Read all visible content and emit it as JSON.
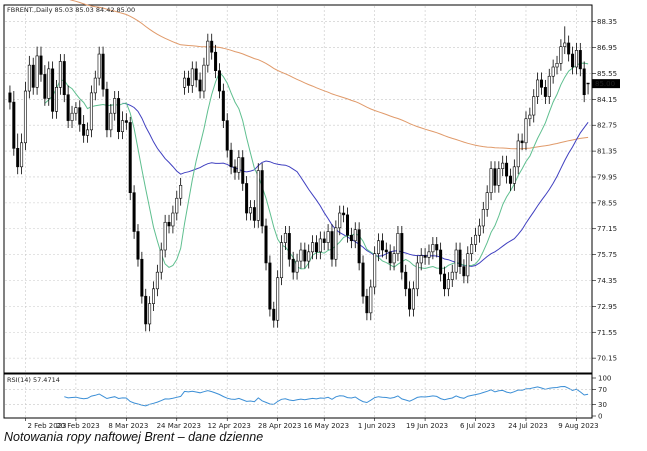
{
  "chart_data": [
    {
      "type": "candlestick",
      "header": "FBRENT.,Daily  85.03 85.03 84.42 85.00",
      "last_price_label": "85.00",
      "ylim": [
        69.4,
        89.2
      ],
      "y_ticks": [
        "88.35",
        "86.95",
        "85.55",
        "84.15",
        "82.75",
        "81.35",
        "79.95",
        "78.55",
        "77.15",
        "75.75",
        "74.35",
        "72.95",
        "71.55",
        "70.15"
      ],
      "x_labels": [
        "2 Feb 2023",
        "20 Feb 2023",
        "8 Mar 2023",
        "24 Mar 2023",
        "12 Apr 2023",
        "28 Apr 2023",
        "16 May 2023",
        "1 Jun 2023",
        "19 Jun 2023",
        "6 Jul 2023",
        "24 Jul 2023",
        "9 Aug 2023"
      ],
      "close": [
        84.0,
        81.5,
        80.5,
        81.8,
        84.6,
        86.0,
        84.8,
        86.5,
        85.5,
        84.2,
        85.8,
        83.5,
        84.8,
        86.2,
        84.4,
        83.0,
        83.4,
        83.7,
        82.8,
        82.2,
        82.5,
        84.5,
        85.3,
        86.6,
        84.7,
        82.5,
        83.4,
        84.2,
        82.4,
        83.0,
        82.9,
        79.1,
        77.0,
        75.5,
        73.5,
        72.0,
        73.1,
        73.9,
        74.8,
        76.0,
        77.5,
        77.3,
        78.0,
        78.8,
        79.5,
        85.3,
        84.9,
        85.8,
        85.2,
        84.6,
        86.0,
        87.3,
        86.7,
        85.7,
        84.6,
        83.0,
        81.4,
        80.5,
        80.2,
        81.0,
        79.6,
        78.0,
        78.3,
        77.6,
        80.3,
        77.3,
        75.3,
        72.8,
        72.2,
        74.5,
        76.4,
        76.9,
        75.5,
        74.8,
        75.4,
        76.0,
        75.4,
        75.9,
        76.4,
        75.9,
        76.6,
        76.4,
        77.0,
        75.5,
        77.2,
        78.0,
        77.9,
        76.8,
        76.5,
        77.1,
        75.3,
        73.5,
        72.6,
        74.0,
        75.8,
        76.5,
        76.0,
        75.9,
        75.3,
        75.8,
        76.9,
        74.8,
        73.9,
        72.8,
        73.9,
        75.3,
        75.7,
        75.6,
        75.9,
        76.3,
        76.0,
        74.7,
        73.9,
        74.4,
        74.8,
        76.0,
        75.1,
        74.6,
        75.8,
        76.3,
        76.8,
        77.3,
        78.2,
        79.1,
        80.4,
        79.5,
        80.4,
        80.7,
        80.0,
        79.6,
        80.5,
        81.9,
        81.8,
        83.1,
        83.3,
        84.3,
        85.2,
        84.8,
        84.3,
        85.4,
        85.9,
        86.1,
        87.0,
        87.2,
        86.6,
        85.9,
        86.8,
        85.8,
        84.4,
        85.0
      ],
      "open": [
        84.5,
        84.0,
        81.5,
        80.5,
        81.8,
        84.6,
        86.0,
        84.8,
        86.5,
        85.5,
        84.2,
        85.8,
        83.5,
        84.8,
        86.2,
        84.4,
        83.0,
        83.4,
        83.7,
        82.8,
        82.2,
        82.5,
        84.5,
        85.3,
        86.6,
        84.7,
        82.5,
        83.4,
        84.2,
        82.4,
        83.0,
        82.9,
        79.1,
        77.0,
        75.5,
        73.5,
        72.0,
        73.1,
        73.9,
        74.8,
        76.0,
        77.5,
        77.3,
        78.0,
        78.8,
        84.8,
        85.3,
        84.9,
        85.8,
        85.2,
        84.6,
        86.0,
        87.3,
        86.7,
        85.7,
        84.6,
        83.0,
        81.4,
        80.5,
        80.2,
        81.0,
        79.6,
        78.0,
        78.3,
        77.6,
        80.3,
        77.3,
        75.3,
        72.8,
        72.2,
        74.5,
        76.4,
        76.9,
        75.5,
        74.8,
        75.4,
        76.0,
        75.4,
        75.9,
        76.4,
        75.9,
        76.6,
        76.4,
        77.0,
        75.5,
        77.2,
        78.0,
        77.9,
        76.8,
        76.5,
        77.1,
        75.3,
        73.5,
        72.6,
        74.0,
        75.8,
        76.5,
        76.0,
        75.9,
        75.3,
        75.8,
        76.9,
        74.8,
        73.9,
        72.8,
        73.9,
        75.3,
        75.7,
        75.6,
        75.9,
        76.3,
        76.0,
        74.7,
        73.9,
        74.4,
        74.8,
        76.0,
        75.1,
        74.6,
        75.8,
        76.3,
        76.8,
        77.3,
        78.2,
        79.1,
        80.4,
        79.5,
        80.4,
        80.7,
        80.0,
        79.6,
        80.5,
        81.9,
        81.8,
        83.1,
        83.3,
        84.3,
        85.2,
        84.8,
        84.3,
        85.4,
        85.9,
        86.1,
        87.0,
        87.2,
        86.6,
        85.9,
        86.8,
        85.8,
        85.03
      ],
      "high": [
        84.9,
        84.6,
        82.3,
        82.3,
        85.1,
        86.5,
        86.4,
        87.0,
        87.0,
        86.0,
        86.2,
        86.2,
        85.2,
        86.6,
        86.6,
        84.9,
        83.8,
        84.0,
        84.1,
        83.3,
        82.9,
        84.9,
        85.7,
        87.0,
        87.0,
        85.1,
        83.9,
        84.6,
        84.6,
        83.5,
        83.4,
        83.2,
        79.5,
        77.4,
        75.9,
        73.9,
        73.5,
        74.3,
        75.2,
        76.4,
        77.9,
        77.9,
        78.4,
        79.2,
        79.9,
        85.7,
        85.7,
        86.2,
        86.2,
        85.6,
        86.4,
        87.7,
        87.7,
        87.1,
        86.1,
        85.0,
        83.4,
        81.8,
        80.9,
        81.4,
        81.4,
        80.0,
        78.7,
        78.7,
        80.7,
        80.7,
        77.7,
        75.7,
        73.2,
        74.9,
        76.8,
        77.3,
        77.3,
        75.9,
        75.8,
        76.4,
        76.4,
        76.3,
        76.8,
        76.8,
        77.0,
        77.0,
        77.4,
        77.4,
        77.6,
        78.4,
        78.4,
        78.3,
        77.2,
        77.5,
        77.5,
        75.7,
        73.9,
        74.4,
        76.2,
        76.9,
        76.9,
        76.4,
        76.3,
        76.2,
        77.3,
        77.3,
        75.2,
        74.3,
        74.3,
        75.7,
        76.1,
        76.1,
        76.3,
        76.7,
        76.7,
        76.4,
        75.1,
        74.8,
        75.2,
        76.4,
        76.4,
        75.5,
        76.2,
        76.7,
        77.2,
        77.7,
        78.6,
        79.5,
        80.8,
        80.8,
        80.8,
        81.1,
        81.1,
        80.4,
        80.9,
        82.3,
        82.3,
        83.5,
        83.7,
        84.7,
        85.6,
        85.6,
        85.2,
        85.8,
        86.3,
        86.5,
        87.4,
        88.1,
        87.6,
        87.0,
        87.2,
        87.2,
        86.2,
        85.03
      ],
      "low": [
        83.6,
        81.1,
        80.1,
        80.1,
        81.4,
        84.2,
        84.4,
        84.4,
        85.1,
        83.8,
        83.8,
        83.1,
        83.1,
        84.4,
        84.0,
        82.6,
        82.6,
        83.0,
        82.4,
        81.8,
        81.8,
        82.1,
        84.1,
        84.9,
        84.3,
        82.1,
        82.1,
        83.0,
        82.0,
        82.0,
        82.5,
        78.7,
        76.6,
        75.1,
        73.1,
        71.6,
        71.6,
        72.7,
        73.5,
        74.4,
        75.6,
        76.9,
        76.9,
        77.6,
        78.4,
        84.4,
        84.5,
        84.5,
        84.8,
        84.2,
        84.2,
        85.6,
        86.3,
        85.3,
        84.2,
        82.6,
        81.0,
        80.1,
        79.8,
        79.8,
        79.2,
        77.6,
        77.6,
        77.2,
        77.2,
        76.9,
        74.9,
        72.4,
        71.8,
        71.8,
        74.1,
        76.0,
        75.1,
        74.4,
        74.4,
        75.0,
        75.0,
        75.0,
        75.5,
        75.5,
        75.5,
        76.0,
        76.0,
        75.1,
        75.1,
        76.8,
        77.5,
        76.4,
        76.1,
        76.1,
        74.9,
        73.1,
        72.2,
        72.2,
        73.6,
        75.4,
        75.6,
        75.5,
        74.9,
        74.9,
        75.4,
        74.4,
        73.5,
        72.4,
        72.4,
        73.5,
        74.9,
        75.2,
        75.2,
        75.5,
        75.6,
        74.3,
        73.5,
        73.5,
        74.0,
        74.4,
        74.7,
        74.2,
        74.2,
        75.4,
        75.9,
        76.4,
        76.9,
        77.8,
        78.7,
        79.1,
        79.1,
        80.0,
        79.6,
        79.2,
        79.2,
        80.1,
        81.4,
        81.4,
        82.7,
        82.9,
        83.9,
        84.4,
        83.9,
        83.9,
        85.0,
        85.5,
        85.7,
        86.6,
        86.2,
        85.5,
        85.5,
        85.4,
        84.0,
        84.42
      ],
      "ma_fast_label": "",
      "ma_mid_label": "",
      "ma_slow_label": "",
      "rsi": {
        "label": "RSI(14) 57.4714",
        "ylim": [
          0,
          100
        ],
        "y_ticks": [
          "100",
          "70",
          "30",
          "0"
        ],
        "levels": [
          30,
          70
        ],
        "last": 57.4714
      }
    }
  ],
  "caption": "Notowania ropy naftowej Brent – dane dzienne",
  "colors": {
    "candle_up": "#ffffff",
    "candle_down": "#000000",
    "candle_outline": "#000000",
    "ma_fast": "#5fbf8f",
    "ma_mid": "#4040c0",
    "ma_slow": "#e09a6a",
    "rsi_line": "#3c8fd6",
    "grid": "#c8c8c8",
    "price_marker_bg": "#000000",
    "price_marker_text": "#ffffff"
  }
}
